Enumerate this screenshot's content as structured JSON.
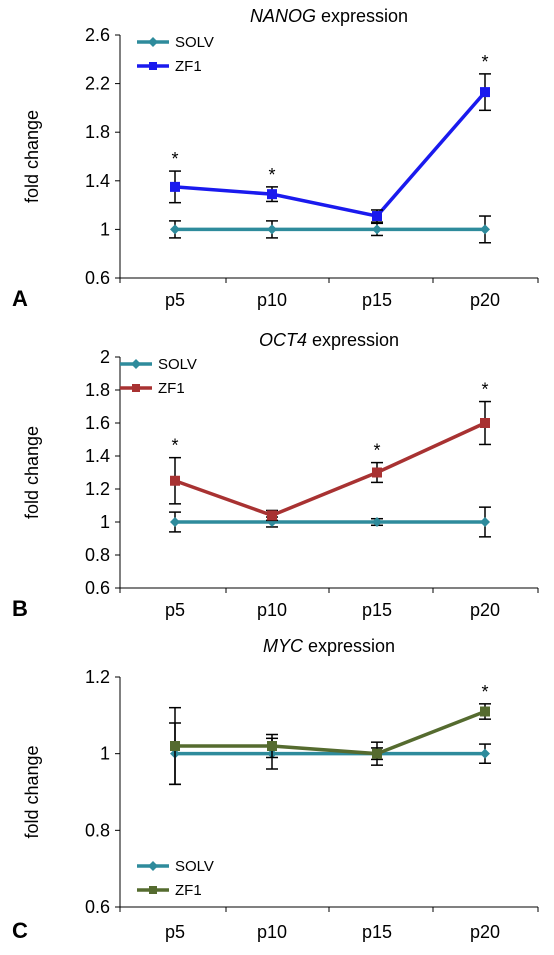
{
  "chart_data": [
    {
      "type": "line",
      "panel_label": "A",
      "title_gene": "NANOG",
      "title_rest": " expression",
      "ylabel": "fold change",
      "categories": [
        "p5",
        "p10",
        "p15",
        "p20"
      ],
      "ylim": [
        0.6,
        2.6
      ],
      "yticks": [
        0.6,
        1,
        1.4,
        1.8,
        2.2,
        2.6
      ],
      "ytick_labels": [
        "0.6",
        "1",
        "1.4",
        "1.8",
        "2.2",
        "2.6"
      ],
      "legend_position": "top-left",
      "series": [
        {
          "name": "SOLV",
          "color": "#2e8b9c",
          "marker": "diamond",
          "values": [
            1.0,
            1.0,
            1.0,
            1.0
          ],
          "errors": [
            0.07,
            0.07,
            0.05,
            0.11
          ]
        },
        {
          "name": "ZF1",
          "color": "#1a1aee",
          "marker": "square",
          "values": [
            1.35,
            1.29,
            1.11,
            2.13
          ],
          "errors": [
            0.13,
            0.06,
            0.05,
            0.15
          ]
        }
      ],
      "annotations": [
        {
          "category": "p5",
          "text": "*"
        },
        {
          "category": "p10",
          "text": "*"
        },
        {
          "category": "p20",
          "text": "*"
        }
      ]
    },
    {
      "type": "line",
      "panel_label": "B",
      "title_gene": "OCT4",
      "title_rest": " expression",
      "ylabel": "fold change",
      "categories": [
        "p5",
        "p10",
        "p15",
        "p20"
      ],
      "ylim": [
        0.6,
        2.0
      ],
      "yticks": [
        0.6,
        0.8,
        1.0,
        1.2,
        1.4,
        1.6,
        1.8,
        2.0
      ],
      "ytick_labels": [
        "0.6",
        "0.8",
        "1",
        "1.2",
        "1.4",
        "1.6",
        "1.8",
        "2"
      ],
      "legend_position": "top-left",
      "series": [
        {
          "name": "SOLV",
          "color": "#2e8b9c",
          "marker": "diamond",
          "values": [
            1.0,
            1.0,
            1.0,
            1.0
          ],
          "errors": [
            0.06,
            0.03,
            0.02,
            0.09
          ]
        },
        {
          "name": "ZF1",
          "color": "#a83232",
          "marker": "square",
          "values": [
            1.25,
            1.04,
            1.3,
            1.6
          ],
          "errors": [
            0.14,
            0.03,
            0.06,
            0.13
          ]
        }
      ],
      "annotations": [
        {
          "category": "p5",
          "text": "*"
        },
        {
          "category": "p15",
          "text": "*"
        },
        {
          "category": "p20",
          "text": "*"
        }
      ]
    },
    {
      "type": "line",
      "panel_label": "C",
      "title_gene": "MYC",
      "title_rest": " expression",
      "ylabel": "fold change",
      "categories": [
        "p5",
        "p10",
        "p15",
        "p20"
      ],
      "ylim": [
        0.6,
        1.2
      ],
      "yticks": [
        0.6,
        0.8,
        1.0,
        1.2
      ],
      "ytick_labels": [
        "0.6",
        "0.8",
        "1",
        "1.2"
      ],
      "legend_position": "bottom-left",
      "series": [
        {
          "name": "SOLV",
          "color": "#2e8b9c",
          "marker": "diamond",
          "values": [
            1.0,
            1.0,
            1.0,
            1.0
          ],
          "errors": [
            0.08,
            0.04,
            0.015,
            0.025
          ]
        },
        {
          "name": "ZF1",
          "color": "#556b2f",
          "marker": "square",
          "values": [
            1.02,
            1.02,
            1.0,
            1.11
          ],
          "errors": [
            0.1,
            0.03,
            0.03,
            0.02
          ]
        }
      ],
      "annotations": [
        {
          "category": "p20",
          "text": "*"
        }
      ]
    }
  ]
}
